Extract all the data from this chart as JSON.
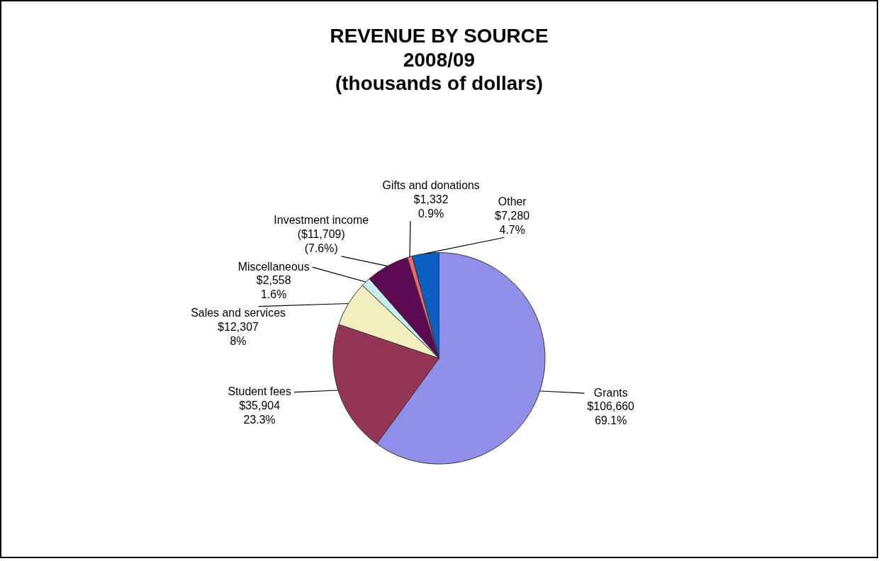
{
  "chart_data": {
    "type": "pie",
    "title": "REVENUE BY SOURCE\n2008/09\n(thousands of dollars)",
    "categories": [
      "Grants",
      "Student fees",
      "Sales and services",
      "Miscellaneous",
      "Investment income",
      "Gifts and donations",
      "Other"
    ],
    "values": [
      106660,
      35904,
      12307,
      2558,
      11709,
      1332,
      7280
    ],
    "colors": [
      "#8f8fea",
      "#953556",
      "#f3eec0",
      "#c6eef0",
      "#5e0a52",
      "#f06a6a",
      "#0a5fc0"
    ],
    "value_labels": [
      "$106,660\n69.1%",
      "$35,904\n23.3%",
      "$12,307\n8%",
      "$2,558\n1.6%",
      "($11,709)\n(7.6%)",
      "$1,332\n0.9%",
      "$7,280\n4.7%"
    ],
    "legend": false
  }
}
